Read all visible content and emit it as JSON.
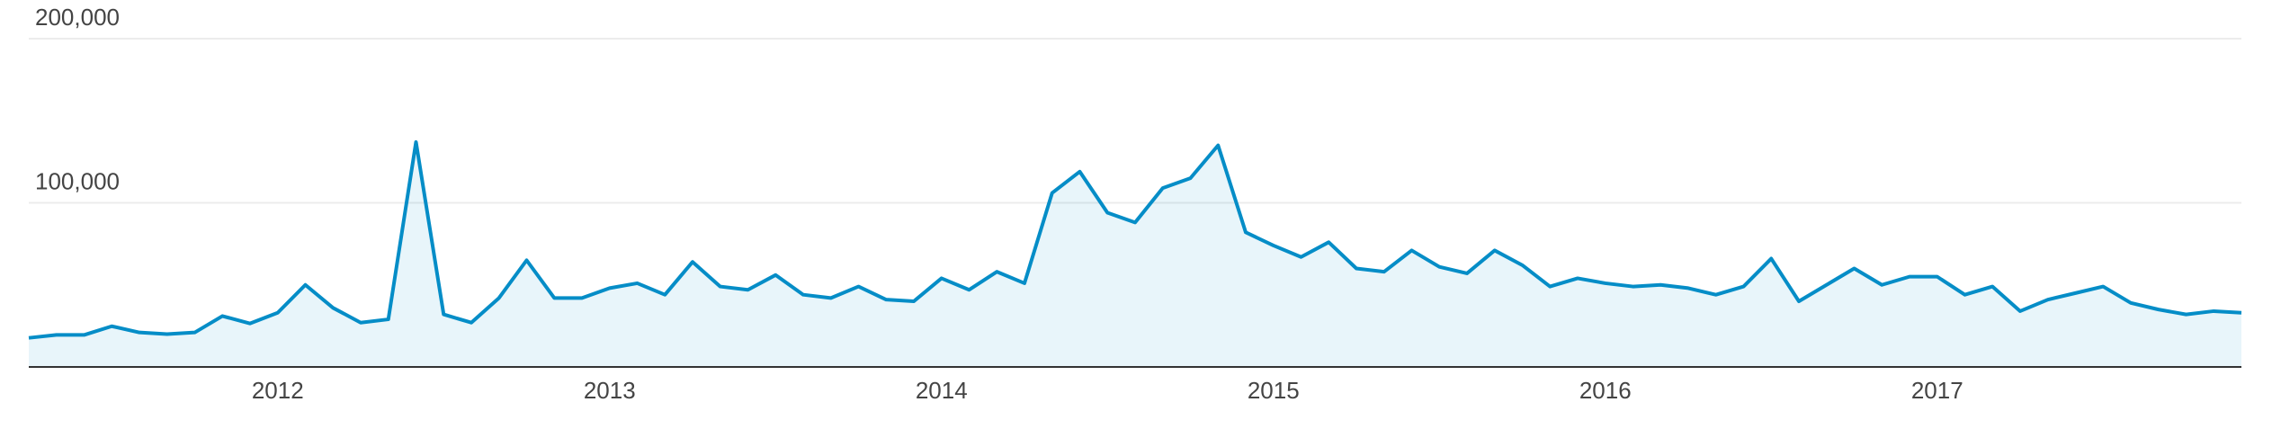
{
  "chart_data": {
    "type": "area",
    "categories": [
      null,
      null,
      null,
      null,
      null,
      null,
      null,
      null,
      null,
      "2012",
      null,
      null,
      null,
      null,
      null,
      null,
      null,
      null,
      null,
      null,
      null,
      "2013",
      null,
      null,
      null,
      null,
      null,
      null,
      null,
      null,
      null,
      null,
      null,
      "2014",
      null,
      null,
      null,
      null,
      null,
      null,
      null,
      null,
      null,
      null,
      null,
      "2015",
      null,
      null,
      null,
      null,
      null,
      null,
      null,
      null,
      null,
      null,
      null,
      "2016",
      null,
      null,
      null,
      null,
      null,
      null,
      null,
      null,
      null,
      null,
      null,
      "2017",
      null,
      null,
      null,
      null,
      null,
      null,
      null,
      null,
      null,
      null,
      null
    ],
    "values": [
      17700,
      19500,
      19500,
      24800,
      21000,
      20000,
      21000,
      31000,
      26500,
      33000,
      50000,
      36000,
      27000,
      29000,
      137000,
      32000,
      27000,
      42000,
      65000,
      42000,
      42000,
      48000,
      51000,
      44000,
      64000,
      49000,
      47000,
      56000,
      44000,
      42000,
      49000,
      41000,
      40000,
      54000,
      47000,
      58000,
      51000,
      106000,
      119000,
      94000,
      88000,
      109000,
      115000,
      135000,
      82000,
      74000,
      67000,
      76000,
      60000,
      58000,
      71000,
      61000,
      57000,
      71000,
      62000,
      49000,
      54000,
      51000,
      49000,
      50000,
      48000,
      44000,
      49000,
      66000,
      40000,
      50000,
      60000,
      50000,
      55000,
      55000,
      44000,
      49000,
      34000,
      41000,
      45000,
      49000,
      39000,
      35000,
      32000,
      34000,
      33000
    ],
    "color": "#058dc7",
    "ylim": [
      0,
      200000
    ],
    "yticks": [
      {
        "value": 100000,
        "label": "100,000"
      },
      {
        "value": 200000,
        "label": "200,000"
      }
    ],
    "grid": true
  }
}
